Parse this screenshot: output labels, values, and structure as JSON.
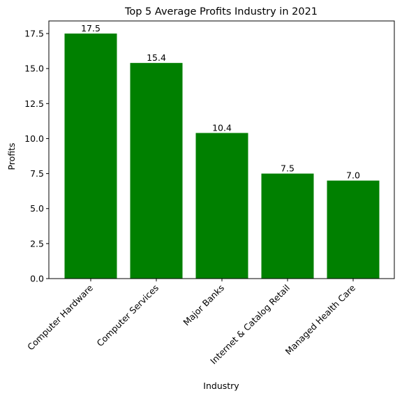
{
  "chart_data": {
    "type": "bar",
    "title": "Top 5 Average Profits Industry in 2021",
    "xlabel": "Industry",
    "ylabel": "Profits",
    "categories": [
      "Computer Hardware",
      "Computer Services",
      "Major Banks",
      "Internet & Catalog Retail",
      "Managed Health Care"
    ],
    "values": [
      17.5,
      15.4,
      10.4,
      7.5,
      7.0
    ],
    "data_labels": [
      "17.5",
      "15.4",
      "10.4",
      "7.5",
      "7.0"
    ],
    "ylim": [
      0,
      18.4
    ],
    "yticks": [
      0.0,
      2.5,
      5.0,
      7.5,
      10.0,
      12.5,
      15.0,
      17.5
    ],
    "ytick_labels": [
      "0.0",
      "2.5",
      "5.0",
      "7.5",
      "10.0",
      "12.5",
      "15.0",
      "17.5"
    ],
    "bar_color": "#008000",
    "grid": false,
    "legend": "none"
  }
}
